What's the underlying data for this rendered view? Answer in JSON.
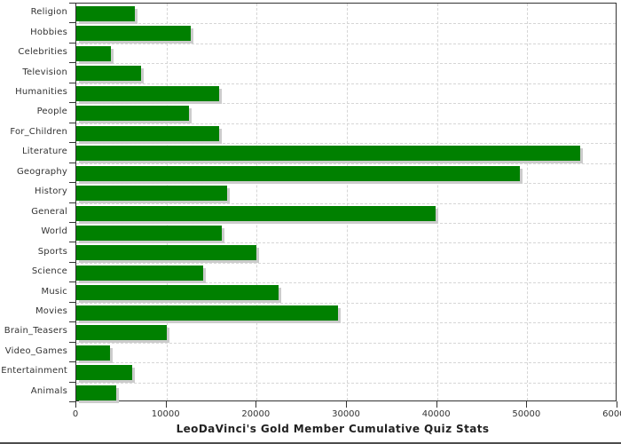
{
  "title": "LeoDaVinci's Gold Member Cumulative Quiz Stats",
  "colors": {
    "bar": "#008000",
    "bar_shadow": "#cccccc",
    "grid": "#d6d6d6",
    "axis": "#333333",
    "tick_text": "#333333",
    "title_text": "#222222",
    "background": "#ffffff"
  },
  "chart_data": {
    "type": "bar",
    "orientation": "horizontal",
    "title": "LeoDaVinci's Gold Member Cumulative Quiz Stats",
    "xlabel": "",
    "ylabel": "",
    "categories": [
      "Religion",
      "Hobbies",
      "Celebrities",
      "Television",
      "Humanities",
      "People",
      "For_Children",
      "Literature",
      "Geography",
      "History",
      "General",
      "World",
      "Sports",
      "Science",
      "Music",
      "Movies",
      "Brain_Teasers",
      "Video_Games",
      "Entertainment",
      "Animals"
    ],
    "values": [
      6500,
      12700,
      3800,
      7200,
      15800,
      12500,
      15800,
      55900,
      49200,
      16700,
      39800,
      16100,
      20000,
      14100,
      22400,
      29000,
      10000,
      3700,
      6200,
      4400
    ],
    "xlim": [
      0,
      60000
    ],
    "x_ticks": [
      0,
      10000,
      20000,
      30000,
      40000,
      50000,
      60000
    ],
    "grid": true,
    "legend_position": "none",
    "bar_color": "#008000"
  }
}
